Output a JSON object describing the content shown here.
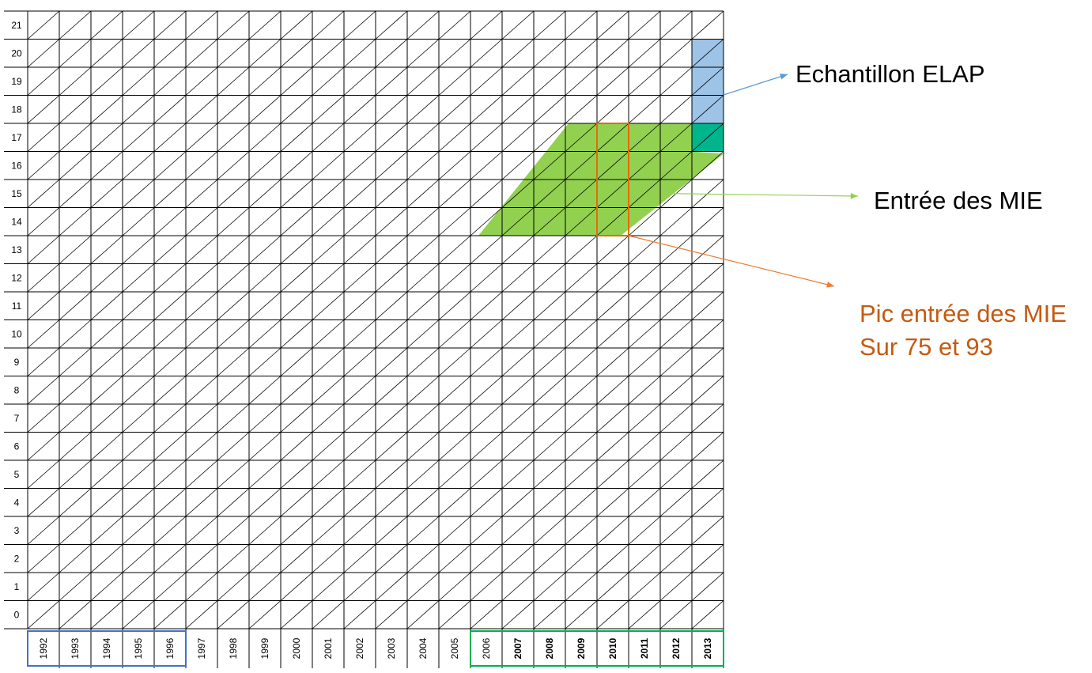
{
  "diagram": {
    "y_axis_labels": [
      "0",
      "1",
      "2",
      "3",
      "4",
      "5",
      "6",
      "7",
      "8",
      "9",
      "10",
      "11",
      "12",
      "13",
      "14",
      "15",
      "16",
      "17",
      "18",
      "19",
      "20",
      "21"
    ],
    "x_axis_labels": [
      "1992",
      "1993",
      "1994",
      "1995",
      "1996",
      "1997",
      "1998",
      "1999",
      "2000",
      "2001",
      "2002",
      "2003",
      "2004",
      "2005",
      "2006",
      "2007",
      "2008",
      "2009",
      "2010",
      "2011",
      "2012",
      "2013"
    ],
    "bold_years": [
      "2007",
      "2008",
      "2009",
      "2010",
      "2011",
      "2012",
      "2013"
    ],
    "blue_box_years": [
      "1992",
      "1996"
    ],
    "green_box_years": [
      "2006",
      "2013"
    ],
    "elap_sample": {
      "year": "2013",
      "ages_blue": [
        "18",
        "19",
        "20"
      ],
      "ages_teal": [
        "17"
      ]
    },
    "mie_entry": {
      "age_from": "14",
      "age_to": "17"
    },
    "mie_peak": {
      "year": "2010",
      "age_from": "14",
      "age_to": "17"
    }
  },
  "annotations": {
    "elap": "Echantillon ELAP",
    "mie": "Entrée des MIE",
    "pic_line1": "Pic entrée des MIE",
    "pic_line2": "Sur 75 et 93"
  },
  "colors": {
    "grid": "#000000",
    "elap_blue": "#9dc3e6",
    "elap_teal": "#00b48c",
    "mie_green": "#92d050",
    "peak_orange": "#e46c0a",
    "blue_box": "#4472c4",
    "green_box": "#00b050",
    "pic_text": "#c55a11",
    "arrow_blue": "#5b9bd5",
    "arrow_green": "#92d050",
    "arrow_orange": "#ed7d31"
  }
}
